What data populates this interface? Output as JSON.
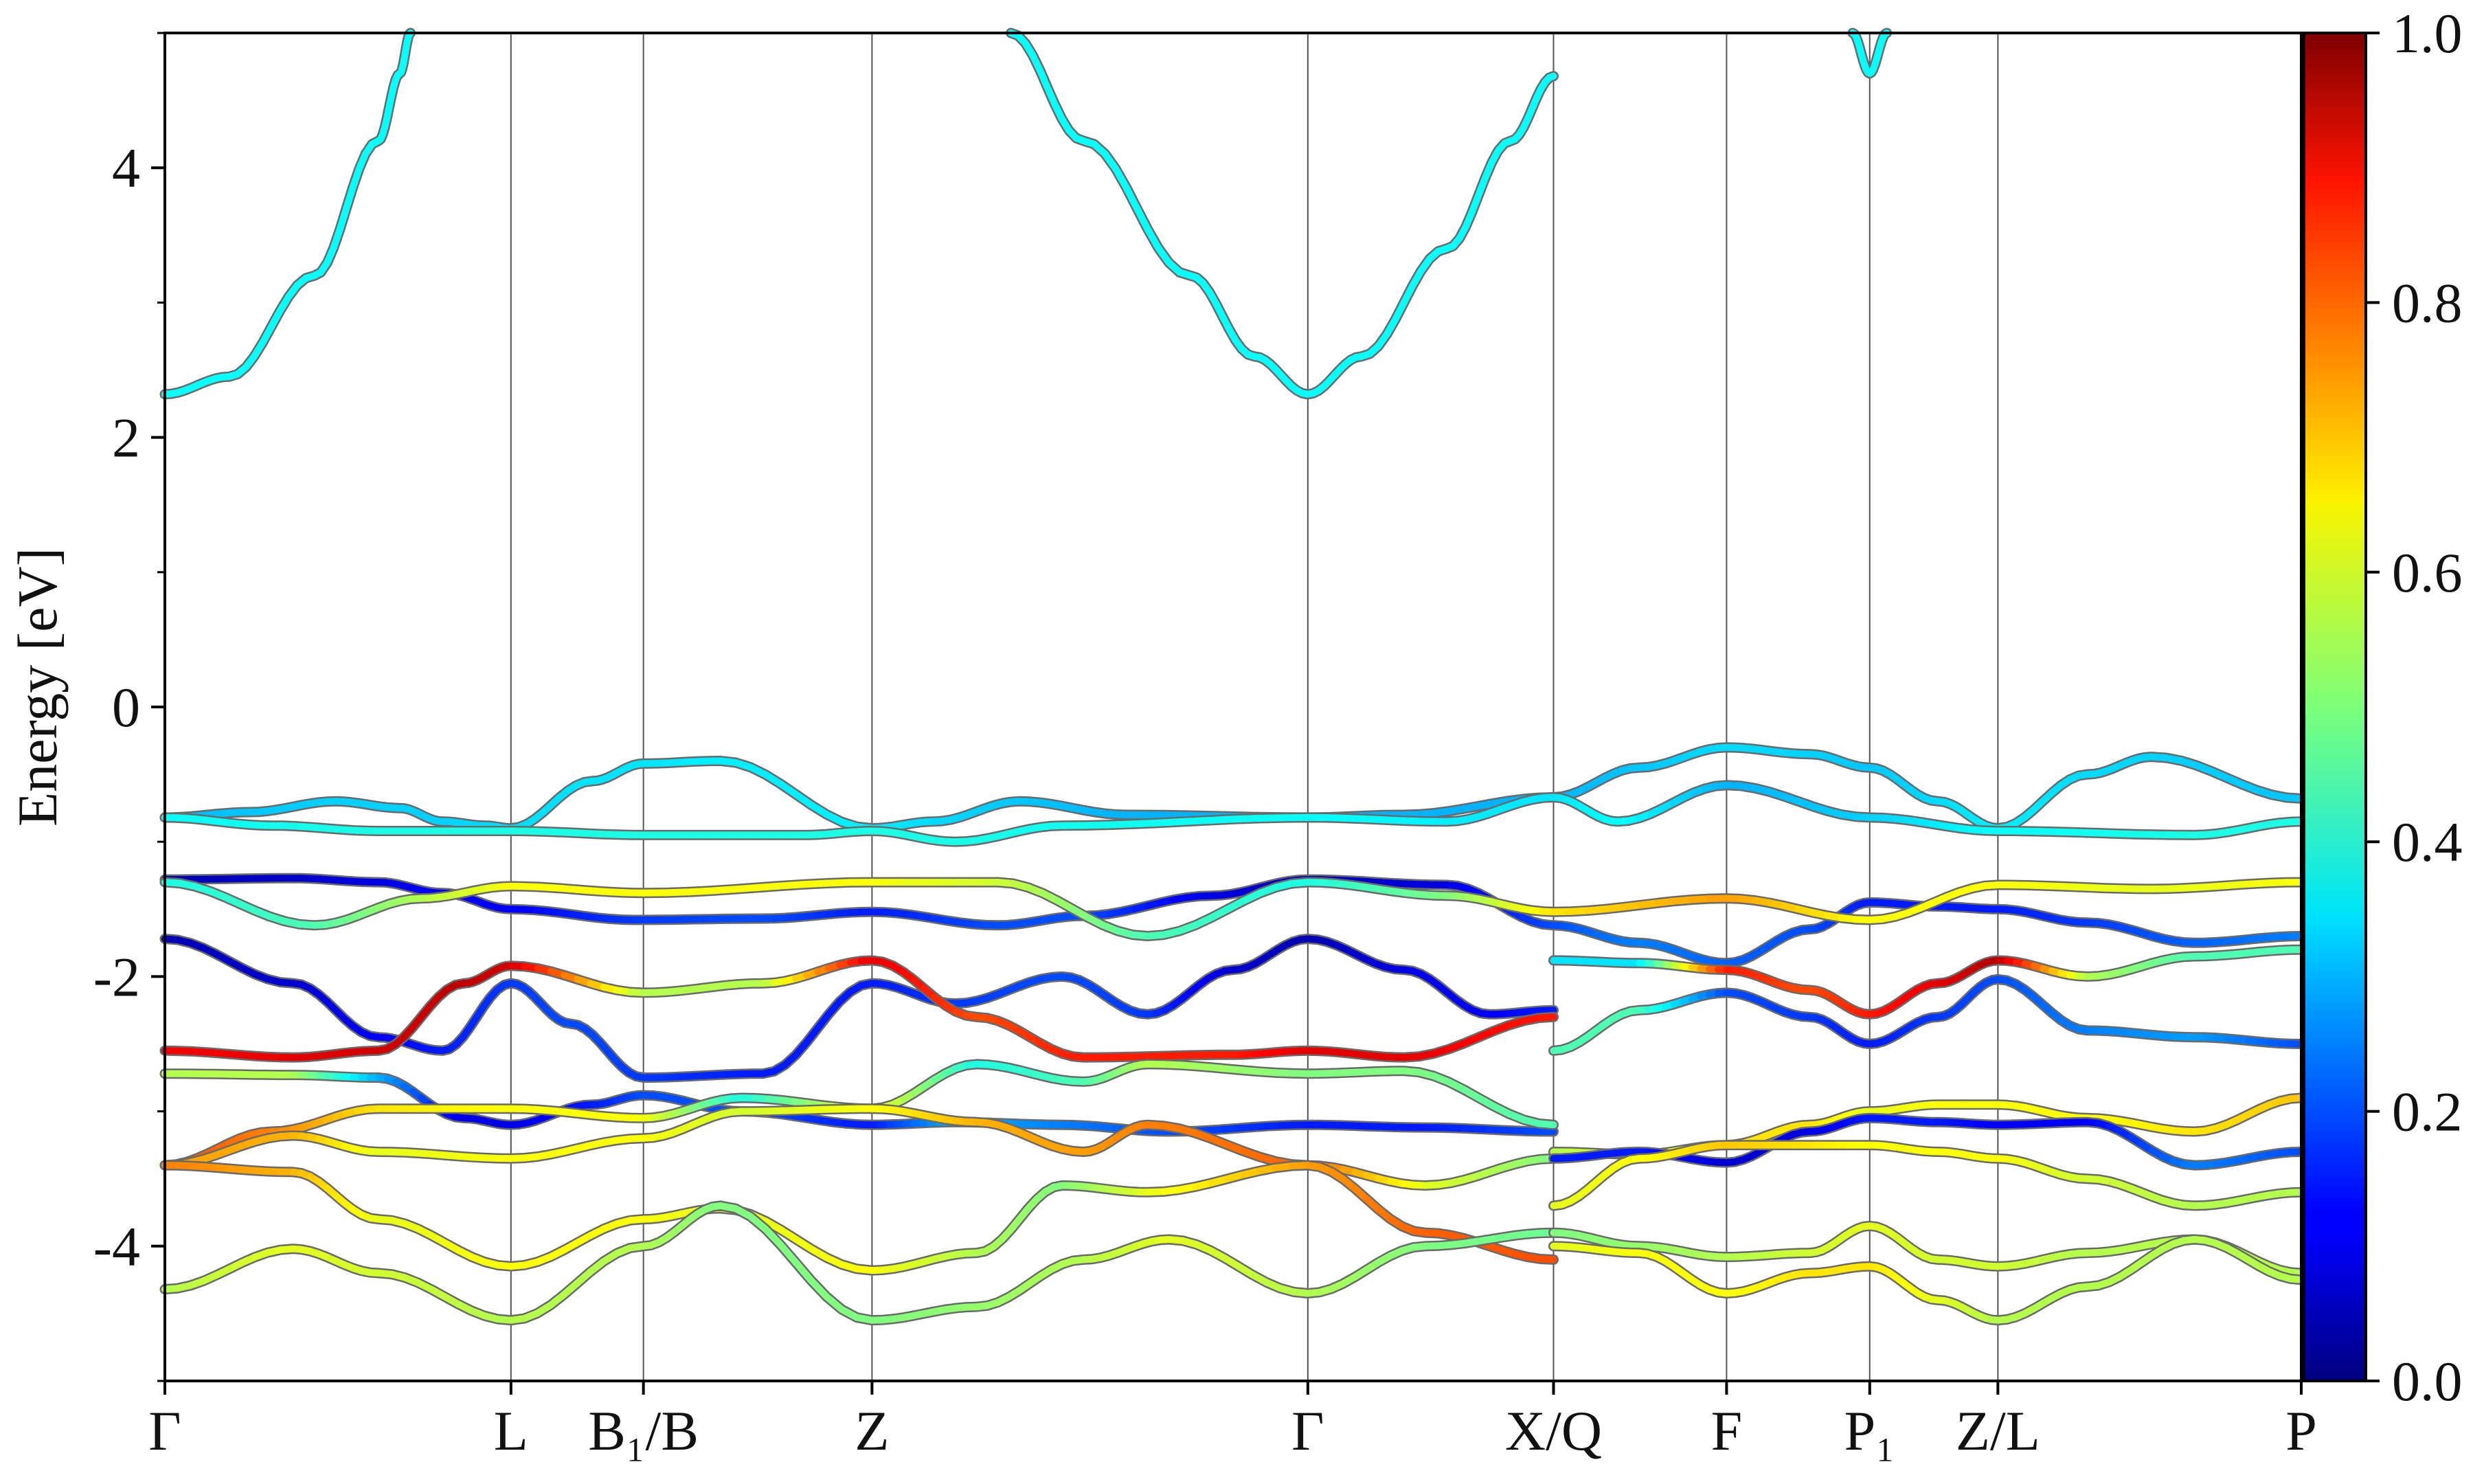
{
  "chart_data": {
    "type": "line",
    "title": "",
    "xlabel": "",
    "ylabel": "Energy [eV]",
    "ylim": [
      -5,
      5
    ],
    "yticks": [
      -4,
      -2,
      0,
      2,
      4
    ],
    "ytick_labels": [
      "-4",
      "-2",
      "0",
      "2",
      "4"
    ],
    "x_range": [
      0,
      10.0
    ],
    "kpath": [
      {
        "label": "Γ",
        "x": 0.0
      },
      {
        "label": "L",
        "x": 1.62
      },
      {
        "label": "B₁/B",
        "x": 2.24
      },
      {
        "label": "Z",
        "x": 3.31
      },
      {
        "label": "Γ",
        "x": 5.35
      },
      {
        "label": "X/Q",
        "x": 6.5
      },
      {
        "label": "F",
        "x": 7.31
      },
      {
        "label": "P₁",
        "x": 7.98
      },
      {
        "label": "Z/L",
        "x": 8.58
      },
      {
        "label": "P",
        "x": 10.0
      }
    ],
    "colorbar": {
      "colormap": "jet",
      "range": [
        0.0,
        1.0
      ],
      "ticks": [
        "0.0",
        "0.2",
        "0.4",
        "0.6",
        "0.8",
        "1.0"
      ]
    },
    "series": [
      {
        "x": [
          0,
          0.4,
          0.8,
          1.1,
          1.3,
          1.5,
          1.62,
          2.0,
          2.24,
          2.6,
          3.31,
          3.6,
          4.0,
          4.5,
          5.35,
          5.8,
          6.5,
          6.9,
          7.31,
          7.7,
          7.98,
          8.3,
          8.58,
          9.0,
          9.3,
          10.0
        ],
        "y": [
          -0.82,
          -0.78,
          -0.7,
          -0.75,
          -0.85,
          -0.88,
          -0.9,
          -0.55,
          -0.42,
          -0.4,
          -0.9,
          -0.85,
          -0.7,
          -0.8,
          -0.82,
          -0.8,
          -0.67,
          -0.45,
          -0.3,
          -0.35,
          -0.45,
          -0.7,
          -0.9,
          -0.5,
          -0.37,
          -0.68
        ],
        "c": [
          0.3,
          0.32,
          0.33,
          0.33,
          0.33,
          0.34,
          0.34,
          0.35,
          0.35,
          0.36,
          0.36,
          0.34,
          0.32,
          0.3,
          0.3,
          0.3,
          0.3,
          0.32,
          0.34,
          0.33,
          0.32,
          0.34,
          0.36,
          0.34,
          0.33,
          0.32
        ]
      },
      {
        "x": [
          0,
          0.5,
          1.0,
          1.62,
          2.24,
          3.0,
          3.31,
          3.7,
          4.2,
          5.35,
          6.0,
          6.5,
          6.8,
          7.31,
          7.98,
          8.58,
          9.5,
          10.0
        ],
        "y": [
          -0.82,
          -0.88,
          -0.92,
          -0.92,
          -0.95,
          -0.95,
          -0.92,
          -1.0,
          -0.88,
          -0.82,
          -0.85,
          -0.67,
          -0.85,
          -0.58,
          -0.82,
          -0.92,
          -0.95,
          -0.85
        ],
        "c": [
          0.38,
          0.39,
          0.4,
          0.4,
          0.4,
          0.4,
          0.4,
          0.4,
          0.39,
          0.38,
          0.36,
          0.35,
          0.38,
          0.3,
          0.33,
          0.38,
          0.4,
          0.4
        ]
      },
      {
        "x": [
          0,
          0.6,
          1.0,
          1.3,
          1.62,
          2.2,
          2.8,
          3.31,
          3.9,
          4.3,
          4.9,
          5.35,
          6.0,
          6.5,
          6.9,
          7.31,
          7.7,
          7.98,
          8.3,
          8.58,
          9.0,
          9.5,
          10.0
        ],
        "y": [
          -1.28,
          -1.27,
          -1.3,
          -1.38,
          -1.5,
          -1.58,
          -1.57,
          -1.52,
          -1.62,
          -1.55,
          -1.4,
          -1.28,
          -1.32,
          -1.62,
          -1.75,
          -1.9,
          -1.65,
          -1.45,
          -1.48,
          -1.5,
          -1.6,
          -1.75,
          -1.7
        ],
        "c": [
          0.05,
          0.07,
          0.1,
          0.12,
          0.12,
          0.18,
          0.2,
          0.15,
          0.2,
          0.2,
          0.1,
          0.05,
          0.1,
          0.2,
          0.25,
          0.22,
          0.2,
          0.15,
          0.15,
          0.15,
          0.18,
          0.22,
          0.25
        ]
      },
      {
        "x": [
          0,
          0.7,
          1.2,
          1.62,
          2.24,
          3.31,
          3.9,
          4.6,
          5.35,
          6.0,
          6.5,
          7.31,
          7.98,
          8.58,
          9.3,
          10.0
        ],
        "y": [
          -1.3,
          -1.62,
          -1.42,
          -1.33,
          -1.38,
          -1.3,
          -1.3,
          -1.7,
          -1.3,
          -1.4,
          -1.52,
          -1.42,
          -1.58,
          -1.32,
          -1.35,
          -1.3
        ],
        "c": [
          0.4,
          0.45,
          0.55,
          0.62,
          0.62,
          0.62,
          0.58,
          0.45,
          0.4,
          0.5,
          0.65,
          0.72,
          0.62,
          0.62,
          0.6,
          0.62
        ]
      },
      {
        "x": [
          0,
          0.6,
          1.0,
          1.3,
          1.62,
          1.9,
          2.24,
          2.8,
          3.31,
          3.7,
          4.2,
          4.6,
          5.0,
          5.35,
          5.8,
          6.2,
          6.5
        ],
        "y": [
          -1.72,
          -2.05,
          -2.45,
          -2.55,
          -2.05,
          -2.35,
          -2.75,
          -2.72,
          -2.05,
          -2.2,
          -2.0,
          -2.28,
          -1.95,
          -1.72,
          -1.95,
          -2.28,
          -2.25
        ],
        "c": [
          0.05,
          0.08,
          0.12,
          0.15,
          0.18,
          0.2,
          0.18,
          0.15,
          0.15,
          0.18,
          0.2,
          0.18,
          0.08,
          0.05,
          0.1,
          0.12,
          0.15
        ]
      },
      {
        "x": [
          0,
          0.6,
          1.0,
          1.4,
          1.62,
          2.24,
          2.8,
          3.31,
          3.8,
          4.3,
          5.0,
          5.35,
          5.8,
          6.5
        ],
        "y": [
          -2.55,
          -2.6,
          -2.55,
          -2.05,
          -1.92,
          -2.12,
          -2.05,
          -1.88,
          -2.3,
          -2.6,
          -2.58,
          -2.55,
          -2.6,
          -2.3
        ],
        "c": [
          0.88,
          0.9,
          0.92,
          0.94,
          0.92,
          0.55,
          0.55,
          0.9,
          0.8,
          0.85,
          0.85,
          0.9,
          0.9,
          0.85
        ]
      },
      {
        "x": [
          6.5,
          6.9,
          7.31,
          7.7,
          7.98,
          8.3,
          8.58,
          9.0,
          9.5,
          10.0
        ],
        "y": [
          -1.88,
          -1.9,
          -1.95,
          -2.1,
          -2.28,
          -2.05,
          -1.88,
          -2.0,
          -1.85,
          -1.8
        ],
        "c": [
          0.35,
          0.35,
          0.85,
          0.8,
          0.85,
          0.9,
          0.95,
          0.55,
          0.45,
          0.45
        ]
      },
      {
        "x": [
          6.5,
          6.9,
          7.31,
          7.7,
          7.98,
          8.3,
          8.58,
          9.0,
          9.5,
          10.0
        ],
        "y": [
          -2.55,
          -2.25,
          -2.12,
          -2.3,
          -2.5,
          -2.3,
          -2.02,
          -2.4,
          -2.45,
          -2.5
        ],
        "c": [
          0.45,
          0.45,
          0.2,
          0.18,
          0.15,
          0.18,
          0.2,
          0.25,
          0.28,
          0.2
        ]
      },
      {
        "x": [
          0,
          0.6,
          1.0,
          1.4,
          1.62,
          2.0,
          2.24,
          2.7,
          3.31,
          3.7,
          4.2,
          4.7,
          5.35,
          5.9,
          6.5
        ],
        "y": [
          -2.72,
          -2.73,
          -2.75,
          -3.05,
          -3.1,
          -2.95,
          -2.88,
          -3.0,
          -3.1,
          -3.08,
          -3.1,
          -3.15,
          -3.1,
          -3.12,
          -3.15
        ],
        "c": [
          0.55,
          0.55,
          0.3,
          0.1,
          0.1,
          0.15,
          0.2,
          0.2,
          0.15,
          0.3,
          0.25,
          0.2,
          0.15,
          0.15,
          0.2
        ]
      },
      {
        "x": [
          0,
          0.5,
          1.0,
          1.62,
          2.24,
          2.7,
          3.31,
          3.8,
          4.3,
          4.6,
          5.35,
          5.8,
          6.5
        ],
        "y": [
          -3.4,
          -3.15,
          -2.98,
          -2.98,
          -3.05,
          -2.9,
          -2.98,
          -2.65,
          -2.78,
          -2.65,
          -2.72,
          -2.7,
          -3.1
        ],
        "c": [
          0.8,
          0.75,
          0.65,
          0.62,
          0.62,
          0.4,
          0.62,
          0.4,
          0.45,
          0.55,
          0.5,
          0.5,
          0.45
        ]
      },
      {
        "x": [
          0,
          0.6,
          1.0,
          1.62,
          2.24,
          2.7,
          3.31,
          3.8,
          4.3,
          4.6,
          5.35,
          5.9,
          6.5
        ],
        "y": [
          -3.4,
          -3.18,
          -3.3,
          -3.35,
          -3.2,
          -3.0,
          -2.98,
          -3.08,
          -3.3,
          -3.1,
          -3.4,
          -3.55,
          -3.35
        ],
        "c": [
          0.72,
          0.7,
          0.6,
          0.62,
          0.62,
          0.58,
          0.62,
          0.7,
          0.72,
          0.75,
          0.78,
          0.6,
          0.5
        ]
      },
      {
        "x": [
          0,
          0.6,
          1.0,
          1.62,
          2.24,
          2.6,
          3.31,
          3.8,
          4.2,
          4.6,
          5.35,
          5.9,
          6.5
        ],
        "y": [
          -3.4,
          -3.45,
          -3.8,
          -4.15,
          -3.8,
          -3.72,
          -4.18,
          -4.05,
          -3.55,
          -3.6,
          -3.4,
          -3.9,
          -4.1
        ],
        "c": [
          0.75,
          0.7,
          0.6,
          0.62,
          0.62,
          0.6,
          0.62,
          0.55,
          0.5,
          0.6,
          0.72,
          0.78,
          0.8
        ]
      },
      {
        "x": [
          0,
          0.6,
          1.0,
          1.62,
          2.24,
          2.6,
          3.31,
          3.8,
          4.3,
          4.7,
          5.35,
          5.9,
          6.5
        ],
        "y": [
          -4.32,
          -4.02,
          -4.2,
          -4.55,
          -4.0,
          -3.7,
          -4.55,
          -4.45,
          -4.1,
          -3.95,
          -4.35,
          -4.0,
          -3.9
        ],
        "c": [
          0.55,
          0.6,
          0.58,
          0.55,
          0.55,
          0.5,
          0.5,
          0.52,
          0.55,
          0.6,
          0.55,
          0.5,
          0.48
        ]
      },
      {
        "x": [
          6.5,
          6.9,
          7.31,
          7.7,
          7.98,
          8.3,
          8.58,
          9.0,
          9.5,
          10.0
        ],
        "y": [
          -3.3,
          -3.32,
          -3.25,
          -3.1,
          -3.0,
          -2.95,
          -2.95,
          -3.05,
          -3.15,
          -2.9
        ],
        "c": [
          0.55,
          0.6,
          0.65,
          0.65,
          0.6,
          0.62,
          0.62,
          0.62,
          0.65,
          0.68
        ]
      },
      {
        "x": [
          6.5,
          6.9,
          7.31,
          7.7,
          7.98,
          8.3,
          8.58,
          9.0,
          9.5,
          10.0
        ],
        "y": [
          -3.35,
          -3.3,
          -3.38,
          -3.15,
          -3.05,
          -3.08,
          -3.1,
          -3.08,
          -3.4,
          -3.3
        ],
        "c": [
          0.15,
          0.15,
          0.08,
          0.1,
          0.15,
          0.15,
          0.12,
          0.12,
          0.25,
          0.2
        ]
      },
      {
        "x": [
          6.5,
          6.9,
          7.31,
          7.7,
          7.98,
          8.3,
          8.58,
          9.0,
          9.5,
          10.0
        ],
        "y": [
          -3.7,
          -3.35,
          -3.25,
          -3.25,
          -3.25,
          -3.3,
          -3.35,
          -3.5,
          -3.7,
          -3.6
        ],
        "c": [
          0.6,
          0.62,
          0.68,
          0.65,
          0.62,
          0.62,
          0.62,
          0.58,
          0.55,
          0.55
        ]
      },
      {
        "x": [
          6.5,
          6.9,
          7.31,
          7.7,
          7.98,
          8.3,
          8.58,
          9.0,
          9.5,
          10.0
        ],
        "y": [
          -3.9,
          -4.0,
          -4.08,
          -4.05,
          -3.85,
          -4.1,
          -4.15,
          -4.05,
          -3.95,
          -4.2
        ],
        "c": [
          0.5,
          0.52,
          0.55,
          0.58,
          0.6,
          0.58,
          0.58,
          0.55,
          0.55,
          0.55
        ]
      },
      {
        "x": [
          6.5,
          6.9,
          7.31,
          7.7,
          7.98,
          8.3,
          8.58,
          9.0,
          9.5,
          10.0
        ],
        "y": [
          -4.0,
          -4.05,
          -4.35,
          -4.2,
          -4.15,
          -4.4,
          -4.55,
          -4.3,
          -3.95,
          -4.25
        ],
        "c": [
          0.6,
          0.62,
          0.62,
          0.65,
          0.65,
          0.6,
          0.55,
          0.55,
          0.55,
          0.55
        ]
      },
      {
        "x": [
          0,
          0.3,
          0.7,
          1.0,
          1.1,
          1.15
        ],
        "y": [
          2.32,
          2.45,
          3.2,
          4.2,
          4.7,
          5.0
        ],
        "c": [
          0.38,
          0.38,
          0.38,
          0.38,
          0.38,
          0.38
        ]
      },
      {
        "x": [
          3.96,
          4.3,
          4.8,
          5.1,
          5.35,
          5.6,
          6.0,
          6.3,
          6.5
        ],
        "y": [
          5.0,
          4.2,
          3.2,
          2.6,
          2.32,
          2.6,
          3.4,
          4.2,
          4.68
        ],
        "c": [
          0.38,
          0.38,
          0.38,
          0.38,
          0.38,
          0.38,
          0.38,
          0.38,
          0.38
        ]
      },
      {
        "x": [
          7.9,
          7.98,
          8.06
        ],
        "y": [
          5.0,
          4.7,
          5.0
        ],
        "c": [
          0.38,
          0.38,
          0.38
        ]
      }
    ]
  }
}
